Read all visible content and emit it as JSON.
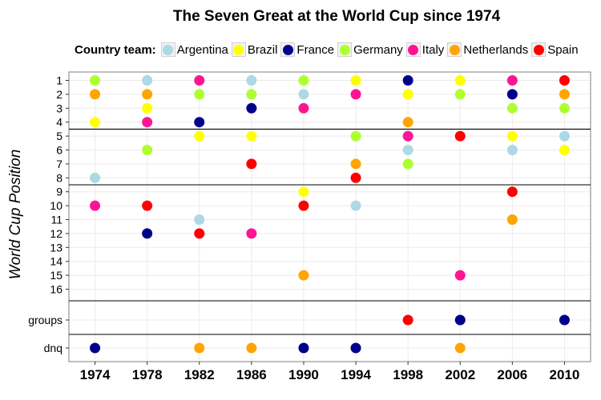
{
  "chart_data": {
    "type": "scatter",
    "title": "The Seven Great at the World Cup since 1974",
    "ylabel": "World Cup Position",
    "xlabel": "",
    "legend_title": "Country team:",
    "legend_position": "top",
    "grid": true,
    "categories": [
      "1974",
      "1978",
      "1982",
      "1986",
      "1990",
      "1994",
      "1998",
      "2002",
      "2006",
      "2010"
    ],
    "y_categories": [
      "1",
      "2",
      "3",
      "4",
      "5",
      "6",
      "7",
      "8",
      "9",
      "10",
      "11",
      "12",
      "13",
      "14",
      "15",
      "16",
      "groups",
      "dnq"
    ],
    "y_separators_after": [
      "4",
      "8",
      "16",
      "groups"
    ],
    "series": [
      {
        "name": "Argentina",
        "color": "#add8e6",
        "points": [
          [
            "1974",
            "8"
          ],
          [
            "1978",
            "1"
          ],
          [
            "1982",
            "11"
          ],
          [
            "1986",
            "1"
          ],
          [
            "1990",
            "2"
          ],
          [
            "1994",
            "10"
          ],
          [
            "1998",
            "6"
          ],
          [
            "2002",
            "groups"
          ],
          [
            "2006",
            "6"
          ],
          [
            "2010",
            "5"
          ]
        ]
      },
      {
        "name": "Brazil",
        "color": "#ffff00",
        "points": [
          [
            "1974",
            "4"
          ],
          [
            "1978",
            "3"
          ],
          [
            "1982",
            "5"
          ],
          [
            "1986",
            "5"
          ],
          [
            "1990",
            "9"
          ],
          [
            "1994",
            "1"
          ],
          [
            "1998",
            "2"
          ],
          [
            "2002",
            "1"
          ],
          [
            "2006",
            "5"
          ],
          [
            "2010",
            "6"
          ]
        ]
      },
      {
        "name": "France",
        "color": "#00008b",
        "points": [
          [
            "1974",
            "dnq"
          ],
          [
            "1978",
            "12"
          ],
          [
            "1982",
            "4"
          ],
          [
            "1986",
            "3"
          ],
          [
            "1990",
            "dnq"
          ],
          [
            "1994",
            "dnq"
          ],
          [
            "1998",
            "1"
          ],
          [
            "2002",
            "groups"
          ],
          [
            "2006",
            "2"
          ],
          [
            "2010",
            "groups"
          ]
        ]
      },
      {
        "name": "Germany",
        "color": "#adff2f",
        "points": [
          [
            "1974",
            "1"
          ],
          [
            "1978",
            "6"
          ],
          [
            "1982",
            "2"
          ],
          [
            "1986",
            "2"
          ],
          [
            "1990",
            "1"
          ],
          [
            "1994",
            "5"
          ],
          [
            "1998",
            "7"
          ],
          [
            "2002",
            "2"
          ],
          [
            "2006",
            "3"
          ],
          [
            "2010",
            "3"
          ]
        ]
      },
      {
        "name": "Italy",
        "color": "#ff1493",
        "points": [
          [
            "1974",
            "10"
          ],
          [
            "1978",
            "4"
          ],
          [
            "1982",
            "1"
          ],
          [
            "1986",
            "12"
          ],
          [
            "1990",
            "3"
          ],
          [
            "1994",
            "2"
          ],
          [
            "1998",
            "5"
          ],
          [
            "2002",
            "15"
          ],
          [
            "2006",
            "1"
          ]
        ]
      },
      {
        "name": "Netherlands",
        "color": "#ffa500",
        "points": [
          [
            "1974",
            "2"
          ],
          [
            "1978",
            "2"
          ],
          [
            "1982",
            "dnq"
          ],
          [
            "1986",
            "dnq"
          ],
          [
            "1990",
            "15"
          ],
          [
            "1994",
            "7"
          ],
          [
            "1998",
            "4"
          ],
          [
            "2002",
            "dnq"
          ],
          [
            "2006",
            "11"
          ],
          [
            "2010",
            "2"
          ]
        ]
      },
      {
        "name": "Spain",
        "color": "#ff0000",
        "points": [
          [
            "1978",
            "10"
          ],
          [
            "1982",
            "12"
          ],
          [
            "1986",
            "7"
          ],
          [
            "1990",
            "10"
          ],
          [
            "1994",
            "8"
          ],
          [
            "1998",
            "groups"
          ],
          [
            "2002",
            "5"
          ],
          [
            "2006",
            "9"
          ],
          [
            "2010",
            "1"
          ]
        ]
      }
    ]
  }
}
